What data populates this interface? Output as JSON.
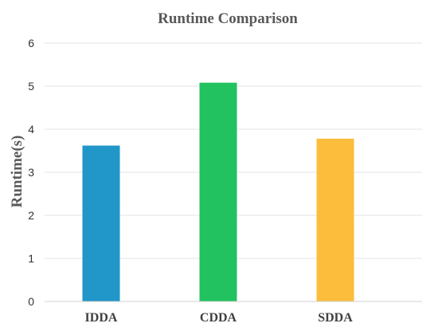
{
  "chart_data": {
    "type": "bar",
    "title": "Runtime Comparison",
    "xlabel": "",
    "ylabel": "Runtime(s)",
    "categories": [
      "IDDA",
      "CDDA",
      "SDDA"
    ],
    "values": [
      3.62,
      5.08,
      3.78
    ],
    "colors": [
      "#2196c9",
      "#21c25f",
      "#fbbd3b"
    ],
    "ylim": [
      0,
      6
    ],
    "yticks": [
      0,
      1,
      2,
      3,
      4,
      5,
      6
    ],
    "grid": true,
    "legend": "none"
  }
}
